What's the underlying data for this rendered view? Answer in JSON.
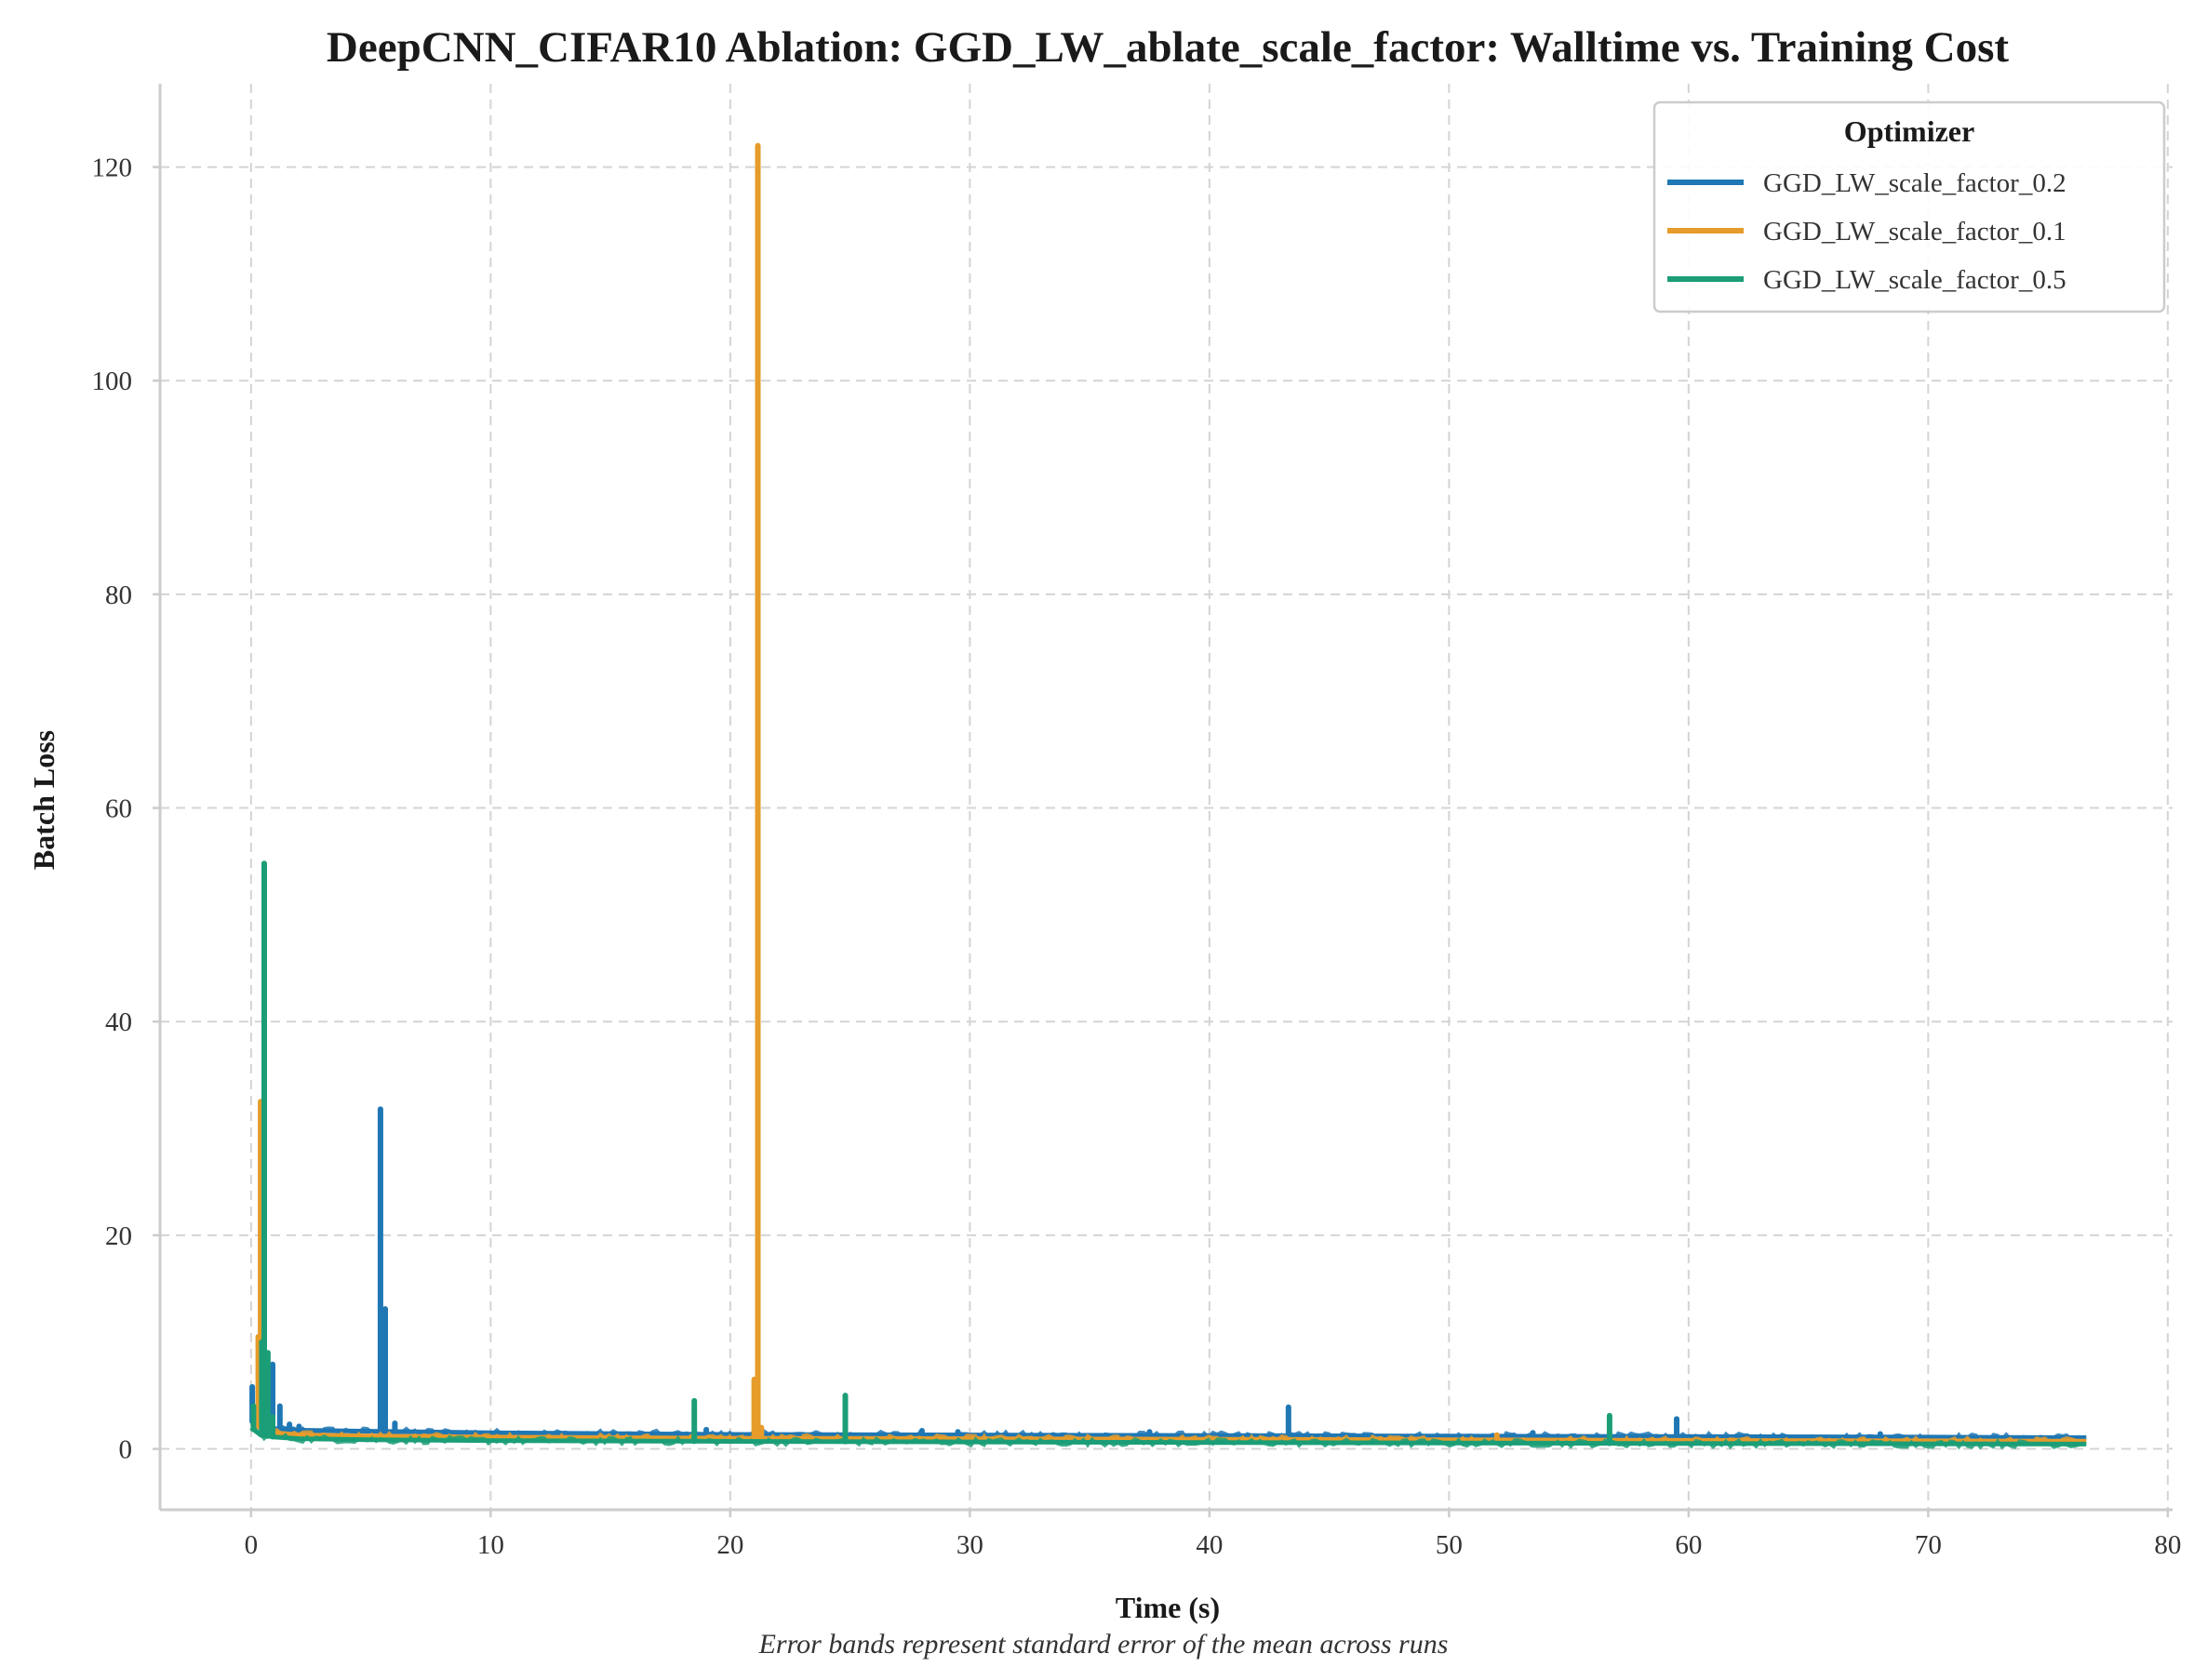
{
  "chart_data": {
    "type": "line",
    "title": "DeepCNN_CIFAR10 Ablation: GGD_LW_ablate_scale_factor: Walltime vs. Training Cost",
    "xlabel": "Time (s)",
    "ylabel": "Batch Loss",
    "footnote": "Error bands represent standard error of the mean across runs",
    "xlim": [
      -3.8,
      80.2
    ],
    "ylim": [
      -5.7,
      127.8
    ],
    "xticks": [
      0,
      10,
      20,
      30,
      40,
      50,
      60,
      70,
      80
    ],
    "yticks": [
      0,
      20,
      40,
      60,
      80,
      100,
      120
    ],
    "grid": true,
    "legend": {
      "title": "Optimizer",
      "placement": "top-right"
    },
    "series": [
      {
        "name": "GGD_LW_scale_factor_0.2",
        "color": "#1f77b4",
        "baseline": [
          [
            0,
            2.6
          ],
          [
            1,
            1.9
          ],
          [
            2,
            1.75
          ],
          [
            5,
            1.65
          ],
          [
            10,
            1.5
          ],
          [
            20,
            1.35
          ],
          [
            30,
            1.3
          ],
          [
            40,
            1.25
          ],
          [
            50,
            1.2
          ],
          [
            60,
            1.15
          ],
          [
            70,
            1.1
          ],
          [
            76.6,
            1.05
          ]
        ],
        "spikes": [
          [
            0.05,
            5.8
          ],
          [
            0.9,
            7.9
          ],
          [
            1.2,
            4.0
          ],
          [
            1.6,
            2.3
          ],
          [
            2.0,
            2.1
          ],
          [
            5.4,
            31.8
          ],
          [
            5.6,
            13.1
          ],
          [
            6.0,
            2.4
          ],
          [
            19.0,
            1.8
          ],
          [
            28.0,
            1.7
          ],
          [
            29.5,
            1.6
          ],
          [
            37.5,
            1.6
          ],
          [
            43.3,
            3.9
          ],
          [
            53.5,
            1.5
          ],
          [
            59.5,
            2.8
          ],
          [
            68.0,
            1.4
          ]
        ]
      },
      {
        "name": "GGD_LW_scale_factor_0.1",
        "color": "#e69b2a",
        "baseline": [
          [
            0,
            2.4
          ],
          [
            0.6,
            1.8
          ],
          [
            1,
            1.5
          ],
          [
            2,
            1.3
          ],
          [
            5,
            1.2
          ],
          [
            10,
            1.1
          ],
          [
            20,
            1.0
          ],
          [
            30,
            0.95
          ],
          [
            40,
            0.9
          ],
          [
            50,
            0.85
          ],
          [
            60,
            0.8
          ],
          [
            70,
            0.75
          ],
          [
            76.6,
            0.72
          ]
        ],
        "spikes": [
          [
            0.3,
            10.5
          ],
          [
            0.4,
            32.5
          ],
          [
            0.55,
            8.0
          ],
          [
            21.0,
            6.5
          ],
          [
            21.15,
            122.0
          ],
          [
            21.3,
            2.0
          ],
          [
            52.0,
            1.3
          ]
        ]
      },
      {
        "name": "GGD_LW_scale_factor_0.5",
        "color": "#1b9e77",
        "baseline": [
          [
            0,
            2.0
          ],
          [
            0.4,
            1.3
          ],
          [
            1,
            1.1
          ],
          [
            2,
            0.95
          ],
          [
            5,
            0.85
          ],
          [
            10,
            0.78
          ],
          [
            20,
            0.7
          ],
          [
            30,
            0.65
          ],
          [
            40,
            0.6
          ],
          [
            50,
            0.55
          ],
          [
            60,
            0.5
          ],
          [
            70,
            0.47
          ],
          [
            76.6,
            0.45
          ]
        ],
        "spikes": [
          [
            0.1,
            4.0
          ],
          [
            0.45,
            10.0
          ],
          [
            0.55,
            54.8
          ],
          [
            0.7,
            9.0
          ],
          [
            0.9,
            3.0
          ],
          [
            18.5,
            4.5
          ],
          [
            24.8,
            5.0
          ],
          [
            56.7,
            3.1
          ]
        ]
      }
    ]
  }
}
